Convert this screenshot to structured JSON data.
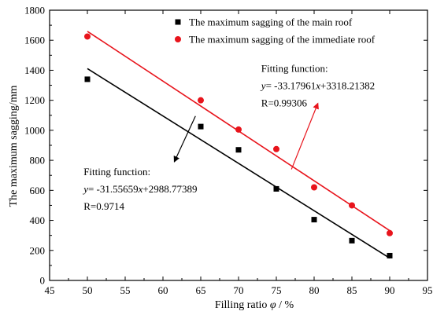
{
  "chart_data": {
    "type": "scatter",
    "xlabel": "Filling ratio φ / %",
    "ylabel": "The maximum sagging/mm",
    "xlim": [
      45,
      95
    ],
    "ylim": [
      0,
      1800
    ],
    "xticks": [
      45,
      50,
      55,
      60,
      65,
      70,
      75,
      80,
      85,
      90,
      95
    ],
    "yticks": [
      0,
      200,
      400,
      600,
      800,
      1000,
      1200,
      1400,
      1600,
      1800
    ],
    "grid": false,
    "legend_position": "top-right",
    "series": [
      {
        "name": "The maximum sagging of the main roof",
        "marker": "square",
        "color": "#000000",
        "x": [
          50,
          65,
          70,
          75,
          80,
          85,
          90
        ],
        "y": [
          1340,
          1025,
          870,
          610,
          405,
          265,
          165
        ],
        "fit": {
          "slope": -31.55659,
          "intercept": 2988.77389,
          "x_range": [
            50,
            90
          ]
        }
      },
      {
        "name": "The maximum sagging of the immediate roof",
        "marker": "circle",
        "color": "#e8141c",
        "x": [
          50,
          65,
          70,
          75,
          80,
          85,
          90
        ],
        "y": [
          1625,
          1200,
          1005,
          875,
          620,
          500,
          315
        ],
        "fit": {
          "slope": -33.17961,
          "intercept": 3318.21382,
          "x_range": [
            50,
            90
          ]
        }
      }
    ],
    "annotations": [
      {
        "series_index": 1,
        "color": "#e8141c",
        "lines": [
          "Fitting function:",
          "y= -33.17961x+3318.21382",
          "R=0.99306"
        ],
        "label_anchor": [
          73,
          1390
        ],
        "arrow_from": [
          77,
          740
        ],
        "arrow_to": [
          80.5,
          1180
        ]
      },
      {
        "series_index": 0,
        "color": "#000000",
        "lines": [
          "Fitting function:",
          "y= -31.55659x+2988.77389",
          "R=0.9714"
        ],
        "label_anchor": [
          49.5,
          700
        ],
        "arrow_from": [
          64.3,
          1095
        ],
        "arrow_to": [
          61.5,
          790
        ]
      }
    ]
  }
}
